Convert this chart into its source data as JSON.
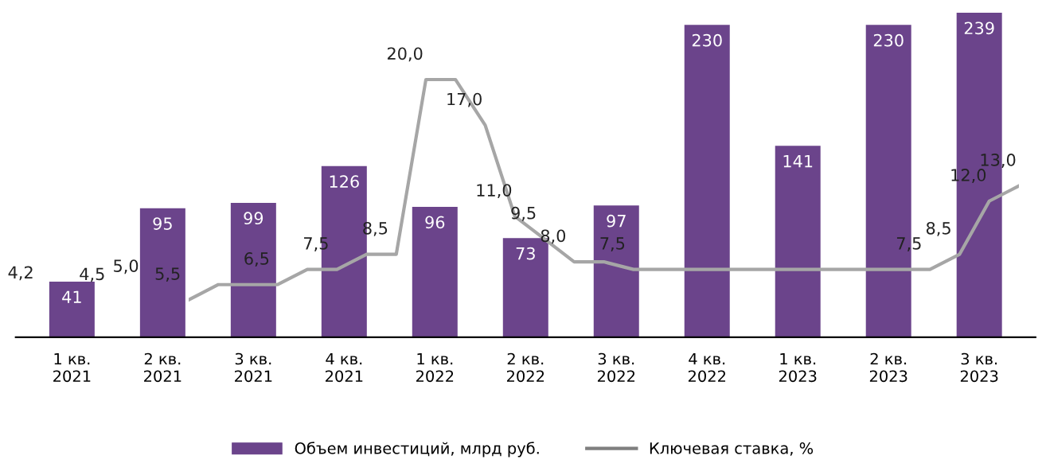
{
  "chart_data": [
    {
      "type": "bar",
      "categories": [
        "1 кв.\n2021",
        "2 кв.\n2021",
        "3 кв.\n2021",
        "4 кв.\n2021",
        "1 кв.\n2022",
        "2 кв.\n2022",
        "3 кв.\n2022",
        "4 кв.\n2022",
        "1 кв.\n2023",
        "2 кв.\n2023",
        "3 кв.\n2023"
      ],
      "series": [
        {
          "name": "Объем инвестиций, млрд руб.",
          "color": "#6b448b",
          "values": [
            41,
            95,
            99,
            126,
            96,
            73,
            97,
            230,
            141,
            230,
            239
          ]
        }
      ],
      "annotations": [
        "4,2",
        "4,5",
        "5,0"
      ],
      "data_labels": true,
      "ylim": [
        0,
        240
      ],
      "tick_labels": "x",
      "legend": "bottom"
    },
    {
      "type": "line",
      "categories": [
        null,
        null,
        null,
        null,
        null,
        null,
        null,
        null,
        null,
        null,
        null,
        null,
        null,
        null,
        null,
        null,
        null,
        null,
        null,
        null,
        null,
        null,
        null,
        null,
        null,
        null,
        null,
        null,
        null
      ],
      "series": [
        {
          "name": "Ключевая ставка, %",
          "color": "#a6a6a6",
          "values": [
            5.5,
            6.5,
            6.5,
            6.5,
            7.5,
            7.5,
            8.5,
            8.5,
            20.0,
            20.0,
            17.0,
            11.0,
            9.5,
            8.0,
            8.0,
            7.5,
            7.5,
            7.5,
            7.5,
            7.5,
            7.5,
            7.5,
            7.5,
            7.5,
            7.5,
            7.5,
            8.5,
            12.0,
            13.0
          ],
          "value_labels": [
            "5,5",
            null,
            null,
            "6,5",
            null,
            "7,5",
            null,
            "8,5",
            "20,0",
            null,
            "17,0",
            "11,0",
            "9,5",
            "8,0",
            null,
            "7,5",
            null,
            null,
            null,
            null,
            null,
            null,
            null,
            null,
            null,
            "7,5",
            "8,5",
            "12,0",
            "13,0"
          ]
        }
      ],
      "tick_labels": false,
      "marker": "none",
      "line_style": "solid"
    }
  ]
}
